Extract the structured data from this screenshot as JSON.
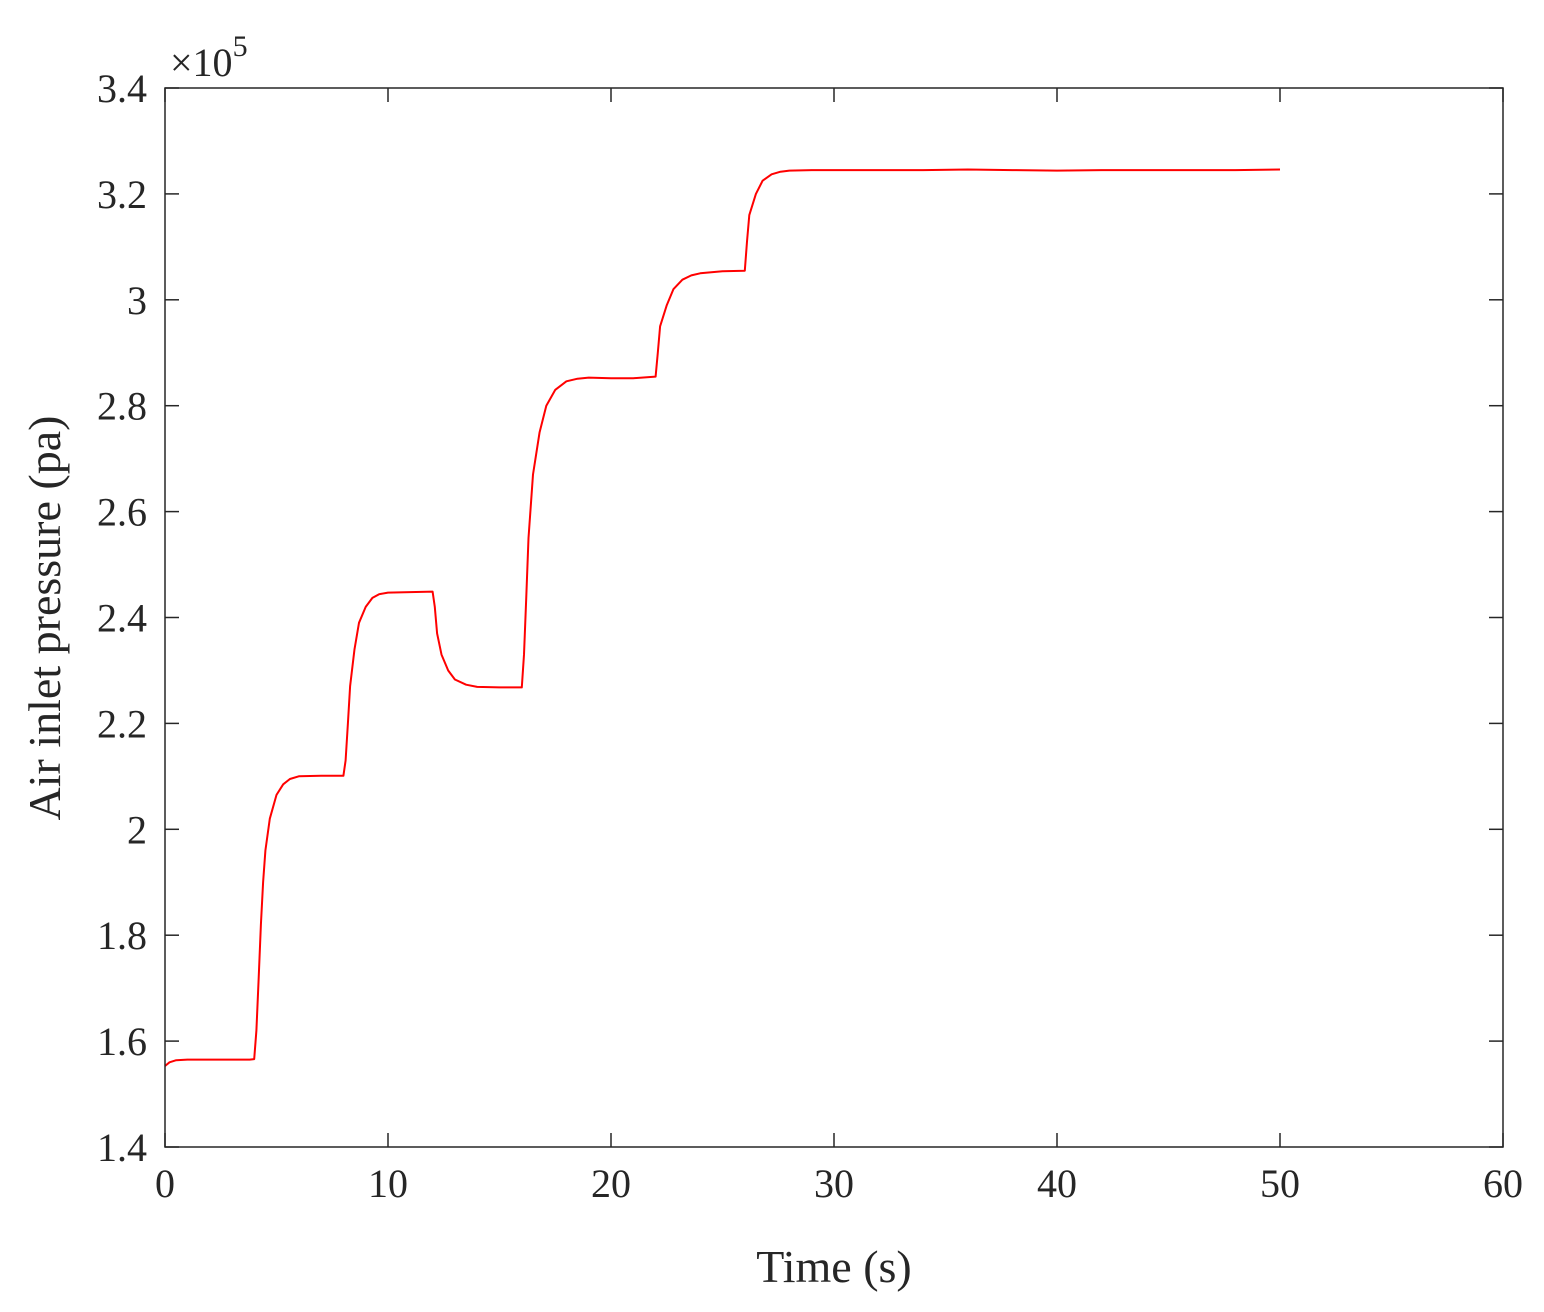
{
  "chart_data": {
    "type": "line",
    "title": "",
    "xlabel": "Time (s)",
    "ylabel": "Air inlet pressure (pa)",
    "y_multiplier_label": "×10",
    "y_multiplier_exponent": "5",
    "xlim": [
      0,
      60
    ],
    "ylim": [
      1.4,
      3.4
    ],
    "xticks": [
      0,
      10,
      20,
      30,
      40,
      50,
      60
    ],
    "xtick_labels": [
      "0",
      "10",
      "20",
      "30",
      "40",
      "50",
      "60"
    ],
    "yticks": [
      1.4,
      1.6,
      1.8,
      2.0,
      2.2,
      2.4,
      2.6,
      2.8,
      3.0,
      3.2,
      3.4
    ],
    "ytick_labels": [
      "1.4",
      "1.6",
      "1.8",
      "2",
      "2.2",
      "2.4",
      "2.6",
      "2.8",
      "3",
      "3.2",
      "3.4"
    ],
    "grid": false,
    "legend": "none",
    "series": [
      {
        "color": "#ff0000",
        "x": [
          0,
          0.2,
          0.5,
          1,
          2,
          3,
          3.8,
          4.0,
          4.1,
          4.2,
          4.3,
          4.4,
          4.5,
          4.7,
          5.0,
          5.3,
          5.6,
          6.0,
          7.0,
          8.0,
          8.1,
          8.2,
          8.3,
          8.5,
          8.7,
          9.0,
          9.3,
          9.6,
          10.0,
          11.0,
          12.0,
          12.1,
          12.2,
          12.4,
          12.7,
          13.0,
          13.5,
          14.0,
          15.0,
          16.0,
          16.1,
          16.2,
          16.3,
          16.5,
          16.8,
          17.1,
          17.5,
          18.0,
          18.5,
          19.0,
          20.0,
          21.0,
          22.0,
          22.1,
          22.2,
          22.5,
          22.8,
          23.2,
          23.6,
          24.0,
          25.0,
          26.0,
          26.1,
          26.2,
          26.5,
          26.8,
          27.2,
          27.6,
          28.0,
          29.0,
          30.0,
          32.0,
          34.0,
          36.0,
          38.0,
          40.0,
          42.0,
          44.0,
          46.0,
          48.0,
          50.0
        ],
        "y": [
          1.553,
          1.56,
          1.564,
          1.565,
          1.565,
          1.565,
          1.565,
          1.566,
          1.62,
          1.72,
          1.82,
          1.9,
          1.96,
          2.02,
          2.065,
          2.085,
          2.095,
          2.1,
          2.101,
          2.101,
          2.13,
          2.2,
          2.27,
          2.34,
          2.39,
          2.42,
          2.437,
          2.444,
          2.447,
          2.448,
          2.449,
          2.42,
          2.37,
          2.33,
          2.3,
          2.283,
          2.273,
          2.269,
          2.268,
          2.268,
          2.33,
          2.44,
          2.55,
          2.67,
          2.75,
          2.8,
          2.83,
          2.846,
          2.851,
          2.853,
          2.852,
          2.852,
          2.855,
          2.9,
          2.95,
          2.99,
          3.02,
          3.038,
          3.046,
          3.05,
          3.054,
          3.055,
          3.11,
          3.16,
          3.2,
          3.225,
          3.237,
          3.242,
          3.244,
          3.245,
          3.245,
          3.245,
          3.245,
          3.246,
          3.245,
          3.244,
          3.245,
          3.245,
          3.245,
          3.245,
          3.246
        ]
      }
    ]
  }
}
